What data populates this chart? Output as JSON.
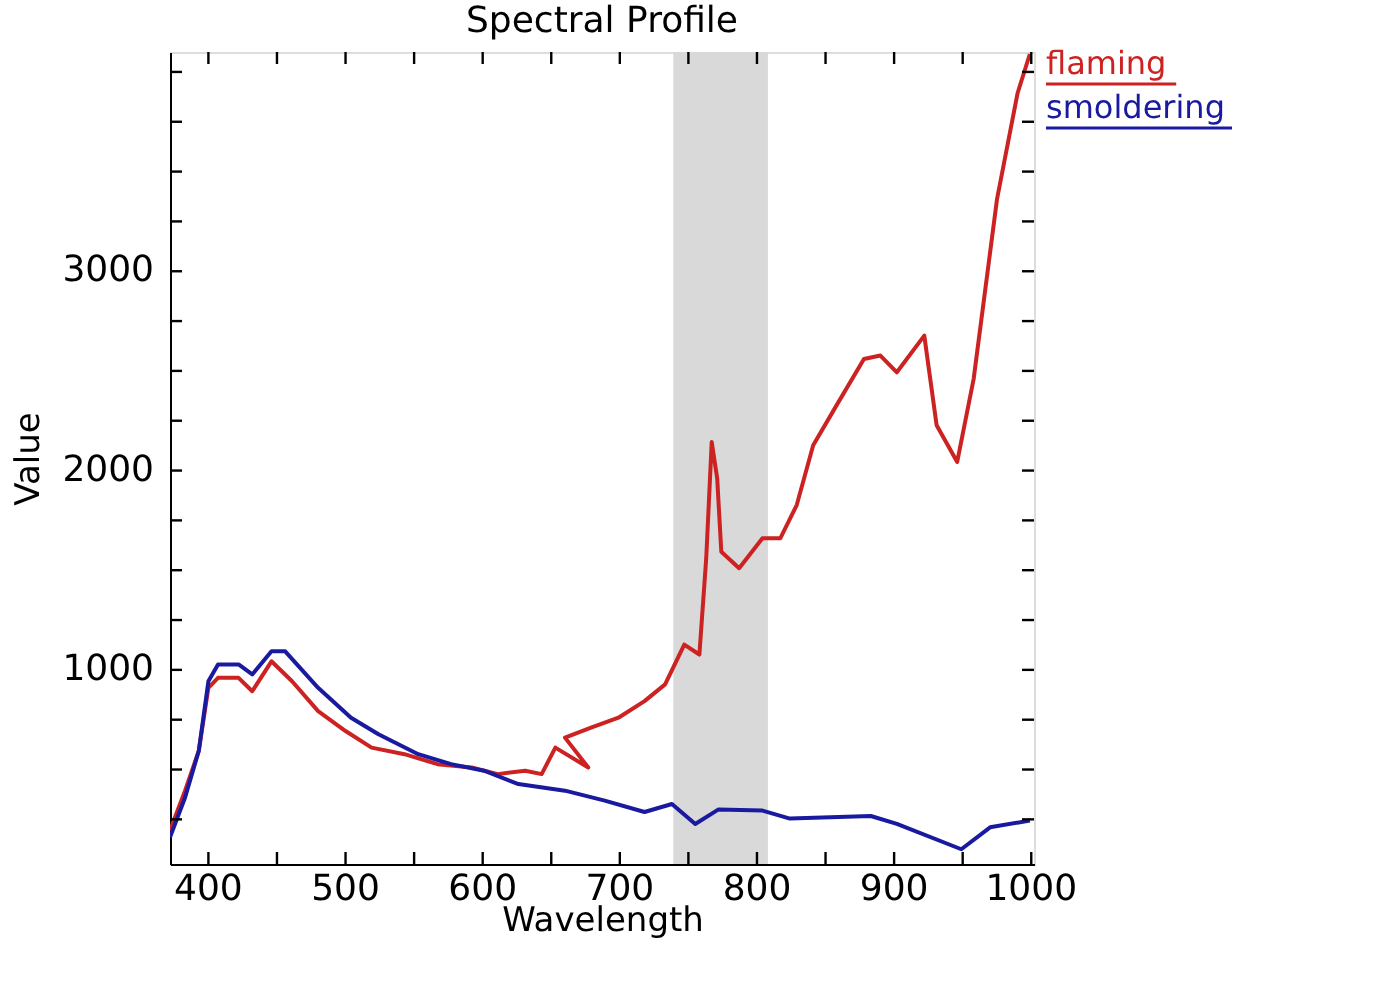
{
  "chart_data": {
    "type": "line",
    "title": "Spectral Profile",
    "xlabel": "Wavelength",
    "ylabel": "Value",
    "xlim": [
      372,
      1002
    ],
    "ylim": [
      26,
      4100
    ],
    "xticks": [
      400,
      {
        "value": 450,
        "label": null
      },
      500,
      {
        "value": 550,
        "label": null
      },
      600,
      {
        "value": 650,
        "label": null
      },
      700,
      {
        "value": 750,
        "label": null
      },
      800,
      {
        "value": 850,
        "label": null
      },
      900,
      {
        "value": 950,
        "label": null
      },
      1000
    ],
    "yticks": [
      {
        "value": 250,
        "label": null
      },
      {
        "value": 500,
        "label": null
      },
      {
        "value": 750,
        "label": null
      },
      1000,
      {
        "value": 1250,
        "label": null
      },
      {
        "value": 1500,
        "label": null
      },
      {
        "value": 1750,
        "label": null
      },
      2000,
      {
        "value": 2250,
        "label": null
      },
      {
        "value": 2500,
        "label": null
      },
      {
        "value": 2750,
        "label": null
      },
      3000,
      {
        "value": 3250,
        "label": null
      },
      {
        "value": 3500,
        "label": null
      },
      {
        "value": 3750,
        "label": null
      },
      {
        "value": 4000,
        "label": null
      }
    ],
    "grid": false,
    "legend": "right",
    "marker": "none",
    "line_style": "solid",
    "bands": [
      {
        "axis": "x",
        "from": 739,
        "to": 808,
        "color": "#d9d9d9"
      }
    ],
    "series": [
      {
        "name": "flaming",
        "color": "#cc2222",
        "x": [
          372,
          383,
          393,
          400,
          407,
          422,
          432,
          446,
          461,
          480,
          500,
          519,
          543,
          567,
          592,
          611,
          631,
          643,
          653,
          677,
          660,
          679,
          699,
          718,
          733,
          747,
          758,
          763,
          767,
          771,
          774,
          787,
          804,
          817,
          829,
          841,
          858,
          878,
          890,
          902,
          922,
          931,
          946,
          958,
          975,
          990,
          999
        ],
        "values": [
          194,
          394,
          594,
          910,
          960,
          960,
          893,
          1043,
          943,
          793,
          693,
          610,
          577,
          527,
          510,
          477,
          494,
          477,
          610,
          510,
          660,
          710,
          760,
          843,
          927,
          1127,
          1077,
          1560,
          2143,
          1960,
          1593,
          1510,
          1660,
          1660,
          1827,
          2127,
          2327,
          2560,
          2577,
          2493,
          2677,
          2227,
          2043,
          2460,
          3360,
          3893,
          4090
        ]
      },
      {
        "name": "smoldering",
        "color": "#1a1aa0",
        "x": [
          372,
          383,
          393,
          400,
          407,
          422,
          432,
          446,
          456,
          480,
          504,
          524,
          553,
          577,
          601,
          626,
          660,
          689,
          718,
          738,
          755,
          772,
          804,
          824,
          883,
          902,
          949,
          970,
          999
        ],
        "values": [
          160,
          360,
          594,
          943,
          1027,
          1027,
          977,
          1093,
          1093,
          910,
          760,
          677,
          577,
          527,
          494,
          427,
          394,
          344,
          287,
          327,
          227,
          300,
          294,
          254,
          267,
          227,
          100,
          210,
          244
        ]
      }
    ]
  }
}
